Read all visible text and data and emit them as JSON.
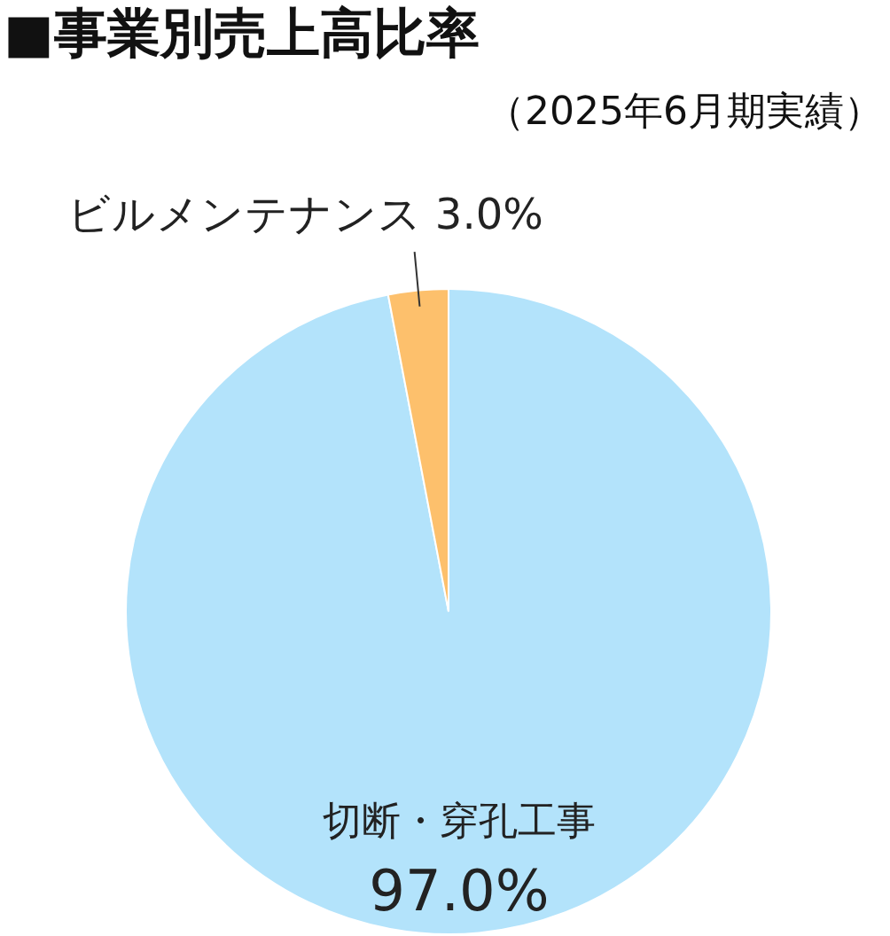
{
  "chart_data": {
    "type": "pie",
    "title": "■事業別売上高比率",
    "subtitle": "（2025年6月期実績）",
    "categories": [
      "切断・穿孔工事",
      "ビルメンテナンス"
    ],
    "values": [
      97.0,
      3.0
    ],
    "colors": [
      "#b3e3fb",
      "#fdc06c"
    ],
    "value_labels": [
      "97.0%",
      "3.0%"
    ]
  }
}
